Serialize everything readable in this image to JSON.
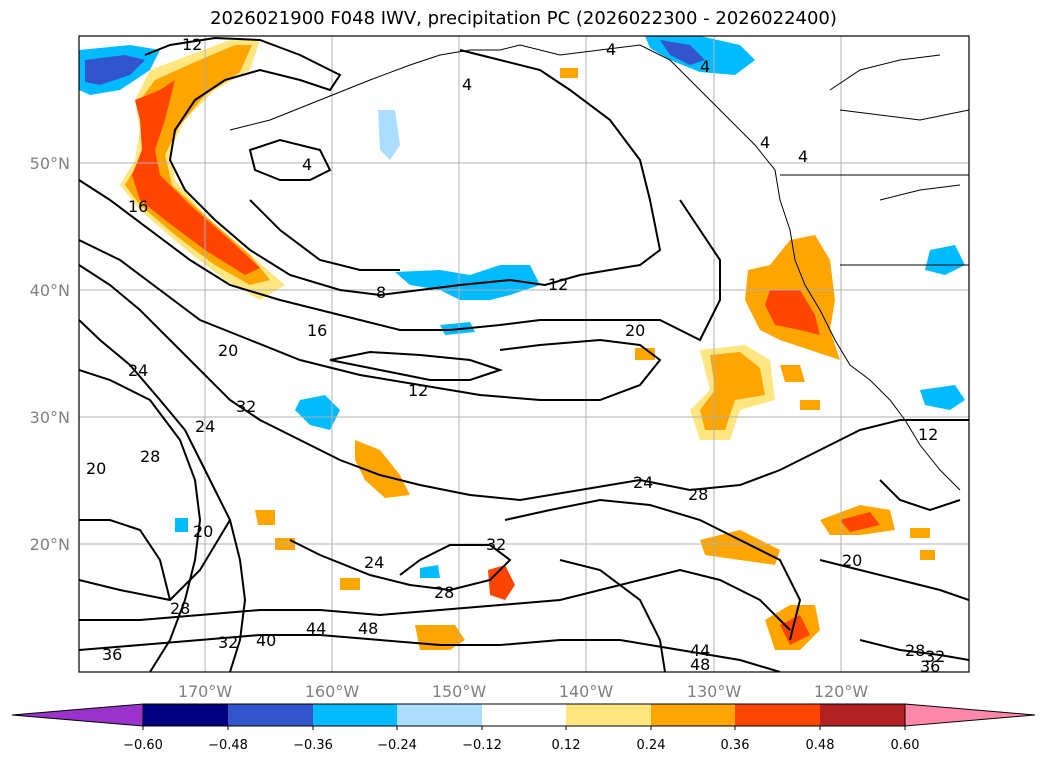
{
  "title": "2026021900 F048 IWV, precipitation PC (2026022300 - 2026022400)",
  "map": {
    "lon_range": [
      -180,
      -110
    ],
    "lat_range": [
      10,
      60
    ],
    "lat_ticks": [
      {
        "value": 20,
        "label": "20°N"
      },
      {
        "value": 30,
        "label": "30°N"
      },
      {
        "value": 40,
        "label": "40°N"
      },
      {
        "value": 50,
        "label": "50°N"
      }
    ],
    "lon_ticks": [
      {
        "value": -170,
        "label": "170°W"
      },
      {
        "value": -160,
        "label": "160°W"
      },
      {
        "value": -150,
        "label": "150°W"
      },
      {
        "value": -140,
        "label": "140°W"
      },
      {
        "value": -130,
        "label": "130°W"
      },
      {
        "value": -120,
        "label": "120°W"
      }
    ],
    "grid": true,
    "contour_labels": [
      "12",
      "4",
      "4",
      "4",
      "4",
      "4",
      "4",
      "16",
      "8",
      "12",
      "16",
      "20",
      "20",
      "24",
      "12",
      "24",
      "28",
      "20",
      "32",
      "24",
      "28",
      "20",
      "28",
      "24",
      "32",
      "28",
      "32",
      "36",
      "40",
      "44",
      "48",
      "44",
      "48",
      "20",
      "28",
      "32",
      "36",
      "12"
    ]
  },
  "colorbar": {
    "ticks": [
      "−0.60",
      "−0.48",
      "−0.36",
      "−0.24",
      "−0.12",
      "0.12",
      "0.24",
      "0.36",
      "0.48",
      "0.60"
    ],
    "colors": [
      "#9933cc",
      "#000080",
      "#3355cc",
      "#00bbff",
      "#aaddff",
      "#ffffff",
      "#ffe680",
      "#ffa500",
      "#ff4500",
      "#b22222",
      "#ff88aa"
    ],
    "extend": "both"
  }
}
